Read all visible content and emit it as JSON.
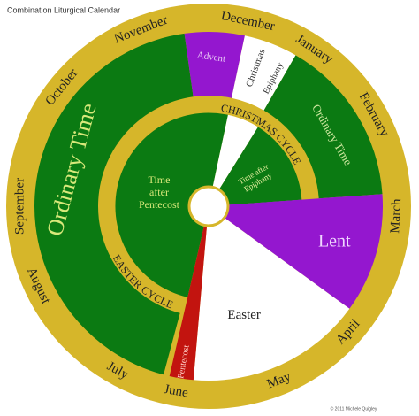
{
  "title": "Combination Liturgical Calendar",
  "months": [
    "November",
    "December",
    "January",
    "February",
    "March",
    "April",
    "May",
    "June",
    "July",
    "August",
    "September",
    "October"
  ],
  "seasons": {
    "advent": "Advent",
    "christmas": "Christmas",
    "epiphany": "Epiphany",
    "ordinary_time_1": "Ordinary Time",
    "ordinary_time_2": "Ordinary Time",
    "lent": "Lent",
    "easter": "Easter",
    "pentecost": "Pentecost",
    "time_after_pentecost": [
      "Time",
      "after",
      "Pentecost"
    ],
    "time_after_epiphany": [
      "Time after",
      "Epiphany"
    ]
  },
  "cycles": {
    "christmas": "CHRISTMAS CYCLE",
    "easter": "EASTER CYCLE"
  },
  "copyright": "© 2011 Michele Quigley"
}
